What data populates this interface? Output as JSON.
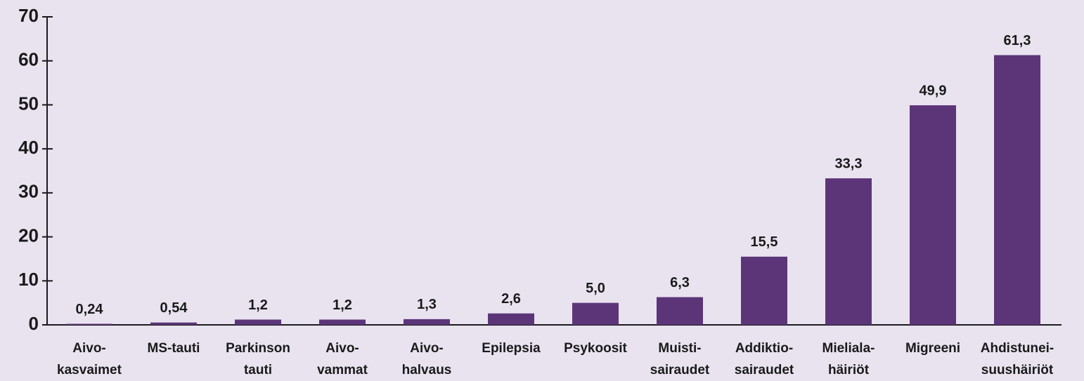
{
  "chart_data": {
    "type": "bar",
    "categories": [
      [
        "Aivo-",
        "kasvaimet"
      ],
      [
        "MS-tauti"
      ],
      [
        "Parkinson",
        "tauti"
      ],
      [
        "Aivo-",
        "vammat"
      ],
      [
        "Aivo-",
        "halvaus"
      ],
      [
        "Epilepsia"
      ],
      [
        "Psykoosit"
      ],
      [
        "Muisti-",
        "sairaudet"
      ],
      [
        "Addiktio-",
        "sairaudet"
      ],
      [
        "Mieliala-",
        "häiriöt"
      ],
      [
        "Migreeni"
      ],
      [
        "Ahdistunei-",
        "suushäiriöt"
      ]
    ],
    "values": [
      0.24,
      0.54,
      1.2,
      1.2,
      1.3,
      2.6,
      5.0,
      6.3,
      15.5,
      33.3,
      49.9,
      61.3
    ],
    "value_labels": [
      "0,24",
      "0,54",
      "1,2",
      "1,2",
      "1,3",
      "2,6",
      "5,0",
      "6,3",
      "15,5",
      "33,3",
      "49,9",
      "61,3"
    ],
    "color": "#5c3579",
    "ylim": [
      0,
      70
    ],
    "yticks": [
      0,
      10,
      20,
      30,
      40,
      50,
      60,
      70
    ],
    "grid": false
  }
}
